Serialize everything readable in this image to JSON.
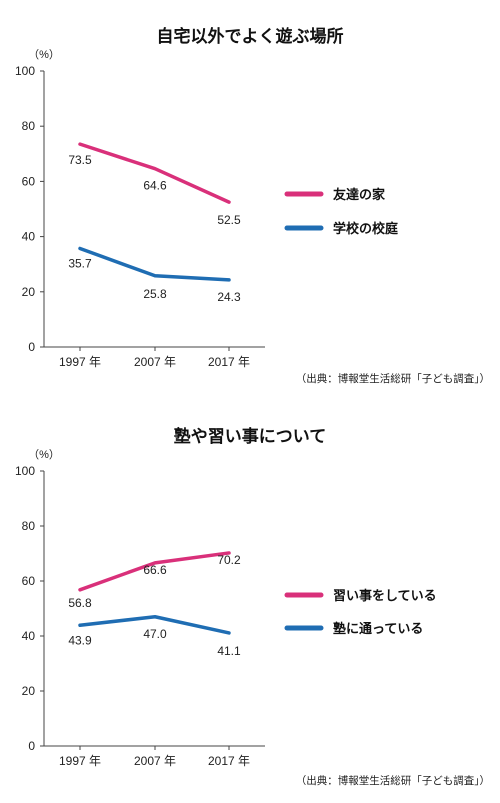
{
  "chart_data": [
    {
      "type": "line",
      "title": "自宅以外でよく遊ぶ場所",
      "unit": "（%）",
      "categories": [
        "1997 年",
        "2007 年",
        "2017 年"
      ],
      "ylim": [
        0,
        100
      ],
      "yticks": [
        0,
        20,
        40,
        60,
        80,
        100
      ],
      "grid": false,
      "legend_position": "right",
      "series": [
        {
          "name": "友達の家",
          "values": [
            73.5,
            64.6,
            52.5
          ],
          "labels": [
            "73.5",
            "64.6",
            "52.5"
          ],
          "color": "#d9307a"
        },
        {
          "name": "学校の校庭",
          "values": [
            35.7,
            25.8,
            24.3
          ],
          "labels": [
            "35.7",
            "25.8",
            "24.3"
          ],
          "color": "#1f6db3"
        }
      ],
      "source": "（出典：博報堂生活総研「子ども調査」）"
    },
    {
      "type": "line",
      "title": "塾や習い事について",
      "unit": "（%）",
      "categories": [
        "1997 年",
        "2007 年",
        "2017 年"
      ],
      "ylim": [
        0,
        100
      ],
      "yticks": [
        0,
        20,
        40,
        60,
        80,
        100
      ],
      "grid": false,
      "legend_position": "right",
      "series": [
        {
          "name": "習い事をしている",
          "values": [
            56.8,
            66.6,
            70.2
          ],
          "labels": [
            "56.8",
            "66.6",
            "70.2"
          ],
          "color": "#d9307a"
        },
        {
          "name": "塾に通っている",
          "values": [
            43.9,
            47.0,
            41.1
          ],
          "labels": [
            "43.9",
            "47.0",
            "41.1"
          ],
          "color": "#1f6db3"
        }
      ],
      "source": "（出典：博報堂生活総研「子ども調査」）"
    }
  ]
}
